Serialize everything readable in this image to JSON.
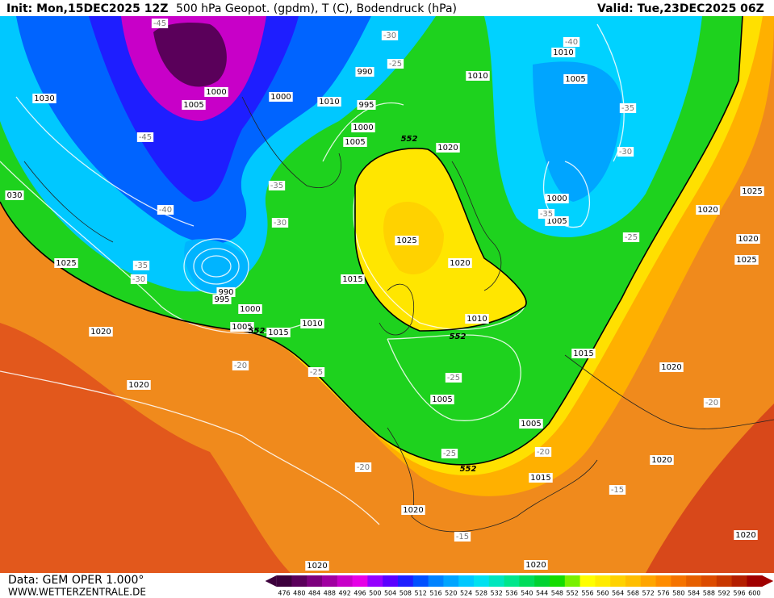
{
  "header": {
    "init": "Init: Mon,15DEC2025 12Z",
    "title": "500 hPa Geopot. (gpdm), T (C), Bodendruck (hPa)",
    "valid": "Valid: Tue,23DEC2025 06Z"
  },
  "footer": {
    "data": "Data: GEM OPER 1.000°",
    "site": "WWW.WETTERZENTRALE.DE"
  },
  "colorbar": {
    "ticks": [
      476,
      480,
      484,
      488,
      492,
      496,
      500,
      504,
      508,
      512,
      516,
      520,
      524,
      528,
      532,
      536,
      540,
      544,
      548,
      552,
      556,
      560,
      564,
      568,
      572,
      576,
      580,
      584,
      588,
      592,
      596,
      600
    ],
    "colors": [
      "#3c003c",
      "#5a005a",
      "#7d007d",
      "#a000a0",
      "#c800c8",
      "#e600e6",
      "#9600ff",
      "#5a00ff",
      "#1e1eff",
      "#0050ff",
      "#0082ff",
      "#00a5ff",
      "#00c8ff",
      "#00e1f0",
      "#00e6be",
      "#00e68c",
      "#00dc5a",
      "#00d232",
      "#14dc00",
      "#78f000",
      "#ffff00",
      "#ffeb00",
      "#ffd200",
      "#ffbe00",
      "#ffa500",
      "#ff8c00",
      "#f57300",
      "#e65f00",
      "#dc4b00",
      "#c83700",
      "#b41e00",
      "#a00000"
    ]
  },
  "map": {
    "isobar_labels": [
      "1030",
      "1005",
      "1000",
      "1000",
      "1010",
      "995",
      "990",
      "1000",
      "1005",
      "1020",
      "1010",
      "1010",
      "1005",
      "1000",
      "1005",
      "1025",
      "1020",
      "1020",
      "1025",
      "1025",
      "1020",
      "1015",
      "1010",
      "1010",
      "1015",
      "1005",
      "1000",
      "990",
      "995",
      "1025",
      "1020",
      "1020",
      "1015",
      "1020",
      "1005",
      "1005",
      "1015",
      "1020",
      "1020",
      "1020",
      "1020",
      "1020",
      "030"
    ],
    "temperature_labels": [
      "-45",
      "-30",
      "-25",
      "-40",
      "-35",
      "-30",
      "-45",
      "-35",
      "-40",
      "-30",
      "-35",
      "-30",
      "-35",
      "-25",
      "-20",
      "-25",
      "-25",
      "-20",
      "-25",
      "-20",
      "-20",
      "-15",
      "-15"
    ],
    "contour_552_labels": [
      "552",
      "552",
      "552",
      "552"
    ]
  }
}
